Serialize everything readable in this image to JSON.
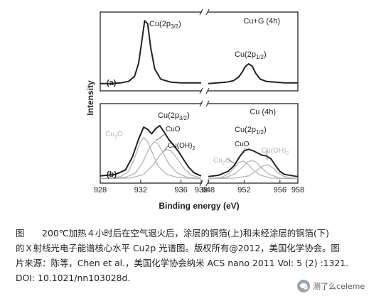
{
  "chart_data": {
    "type": "line",
    "xlabel": "Binding energy (eV)",
    "ylabel": "Intensity",
    "x_segments": [
      {
        "range": [
          928,
          938
        ],
        "ticks": [
          928,
          932,
          936,
          938
        ]
      },
      {
        "range": [
          948,
          958
        ],
        "ticks": [
          948,
          952,
          956,
          958
        ]
      }
    ],
    "panels": [
      {
        "label": "(a)",
        "condition": "Cu+G (4h)",
        "annotations": [
          "Cu(2p3/2)",
          "Cu(2p1/2)"
        ],
        "series": [
          {
            "role": "measured",
            "color": "#222222",
            "x": [
              928.0,
              929.0,
              930.0,
              930.8,
              931.4,
              931.8,
              932.1,
              932.4,
              932.7,
              933.0,
              933.4,
              934.0,
              935.0,
              936.0,
              937.0,
              938.0
            ],
            "y": [
              0.06,
              0.06,
              0.07,
              0.09,
              0.16,
              0.34,
              0.62,
              0.92,
              0.88,
              0.55,
              0.26,
              0.12,
              0.08,
              0.07,
              0.07,
              0.07
            ],
            "x2": [
              948.0,
              949.0,
              950.0,
              950.8,
              951.4,
              951.8,
              952.1,
              952.5,
              952.9,
              953.3,
              953.8,
              954.5,
              955.5,
              956.5,
              958.0
            ],
            "y2": [
              0.06,
              0.07,
              0.08,
              0.1,
              0.15,
              0.22,
              0.29,
              0.33,
              0.3,
              0.2,
              0.12,
              0.09,
              0.08,
              0.07,
              0.07
            ]
          }
        ]
      },
      {
        "label": "(b)",
        "condition": "Cu (4h)",
        "annotations": [
          "Cu(2p3/2)",
          "Cu(2p1/2)",
          "Cu2O",
          "CuO",
          "Cu(OH)2",
          "Cu2O",
          "CuO",
          "Cu(OH)2"
        ],
        "series": [
          {
            "role": "measured",
            "color": "#222222",
            "x": [
              928.0,
              929.5,
              930.5,
              931.2,
              931.8,
              932.3,
              932.7,
              933.1,
              933.5,
              933.9,
              934.3,
              934.8,
              935.3,
              935.8,
              936.3,
              936.8,
              937.3,
              938.0
            ],
            "y": [
              0.06,
              0.08,
              0.14,
              0.32,
              0.56,
              0.72,
              0.69,
              0.63,
              0.7,
              0.74,
              0.66,
              0.55,
              0.47,
              0.38,
              0.27,
              0.17,
              0.1,
              0.06
            ],
            "x2": [
              948.0,
              949.2,
              950.2,
              950.9,
              951.5,
              952.0,
              952.5,
              953.0,
              953.5,
              954.0,
              954.5,
              955.0,
              955.5,
              956.0,
              956.5,
              958.0
            ],
            "y2": [
              0.05,
              0.07,
              0.12,
              0.2,
              0.32,
              0.4,
              0.42,
              0.4,
              0.37,
              0.34,
              0.33,
              0.29,
              0.2,
              0.12,
              0.08,
              0.05
            ]
          },
          {
            "role": "fit-Cu2O",
            "color": "#b4b4b4",
            "x": [
              928.0,
              930.0,
              930.8,
              931.4,
              931.9,
              932.3,
              932.7,
              933.2,
              933.8,
              934.6,
              935.6,
              936.5,
              938.0
            ],
            "y": [
              0.02,
              0.05,
              0.12,
              0.3,
              0.5,
              0.58,
              0.52,
              0.36,
              0.18,
              0.08,
              0.04,
              0.03,
              0.02
            ],
            "x2": [
              948.0,
              949.5,
              950.3,
              950.9,
              951.4,
              951.9,
              952.4,
              953.0,
              953.8,
              955.0,
              958.0
            ],
            "y2": [
              0.02,
              0.04,
              0.09,
              0.17,
              0.24,
              0.26,
              0.22,
              0.14,
              0.07,
              0.03,
              0.02
            ]
          },
          {
            "role": "fit-CuO",
            "color": "#b4b4b4",
            "x": [
              928.0,
              930.5,
              931.5,
              932.2,
              932.8,
              933.3,
              933.7,
              934.2,
              934.8,
              935.6,
              936.6,
              938.0
            ],
            "y": [
              0.02,
              0.04,
              0.1,
              0.24,
              0.42,
              0.52,
              0.5,
              0.38,
              0.22,
              0.1,
              0.04,
              0.02
            ],
            "x2": [
              948.0,
              950.0,
              951.0,
              951.8,
              952.4,
              952.9,
              953.4,
              954.0,
              954.8,
              956.0,
              958.0
            ],
            "y2": [
              0.02,
              0.04,
              0.09,
              0.18,
              0.25,
              0.27,
              0.24,
              0.16,
              0.08,
              0.03,
              0.02
            ]
          },
          {
            "role": "fit-Cu(OH)2",
            "color": "#b4b4b4",
            "x": [
              928.0,
              931.0,
              932.3,
              933.2,
              933.9,
              934.5,
              935.0,
              935.6,
              936.3,
              937.0,
              938.0
            ],
            "y": [
              0.02,
              0.03,
              0.08,
              0.2,
              0.34,
              0.42,
              0.4,
              0.3,
              0.16,
              0.07,
              0.03
            ],
            "x2": [
              948.0,
              951.0,
              952.5,
              953.4,
              954.0,
              954.6,
              955.2,
              955.8,
              956.5,
              958.0
            ],
            "y2": [
              0.02,
              0.03,
              0.06,
              0.13,
              0.19,
              0.21,
              0.17,
              0.1,
              0.05,
              0.02
            ]
          }
        ]
      }
    ]
  },
  "caption": {
    "lines": [
      "图　　200℃加热４小时后在空气退火后，涂层的铜箔(上)和未经涂层的铜箔(下)",
      "的Ｘ射线光电子能谱核心水平 Cu2p 光谱图。版权所有@2012，美国化学协会。图",
      "片来源：陈等，Chen et al.，美国化学协会纳米 ACS nano 2011 Vol: 5 (2) :1321.",
      "DOI: 10.1021/nn103028d."
    ]
  },
  "watermark": {
    "text": "测了么celeme",
    "icon": "wechat-icon"
  }
}
